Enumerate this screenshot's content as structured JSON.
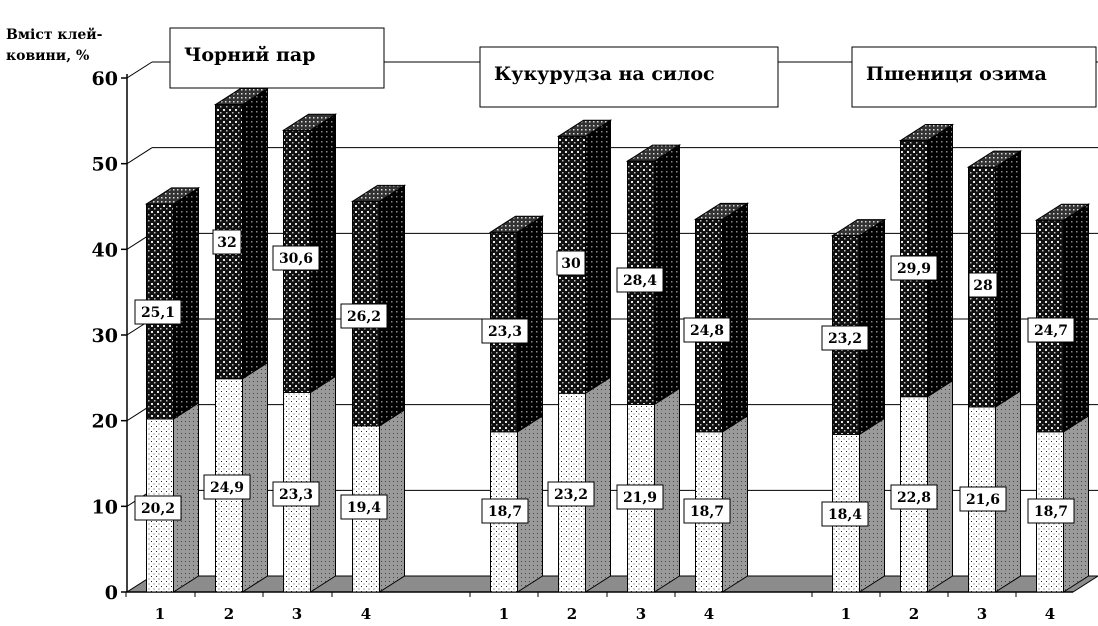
{
  "chart_data": {
    "type": "bar",
    "stacked": true,
    "three_d": true,
    "ylabel_lines": [
      "Вміст клей-",
      "ковини, %"
    ],
    "ylim": [
      0,
      60
    ],
    "yticks": [
      0,
      10,
      20,
      30,
      40,
      50,
      60
    ],
    "grid": true,
    "groups": [
      {
        "title": "Чорний пар",
        "categories": [
          "1",
          "2",
          "3",
          "4"
        ],
        "series": [
          {
            "values": [
              20.2,
              24.9,
              23.3,
              19.4
            ],
            "labels": [
              "20,2",
              "24,9",
              "23,3",
              "19,4"
            ],
            "pattern": "light-dotted"
          },
          {
            "values": [
              25.1,
              32,
              30.6,
              26.2
            ],
            "labels": [
              "25,1",
              "32",
              "30,6",
              "26,2"
            ],
            "pattern": "dark-checkered"
          }
        ]
      },
      {
        "title": "Кукурудза на силос",
        "categories": [
          "1",
          "2",
          "3",
          "4"
        ],
        "series": [
          {
            "values": [
              18.7,
              23.2,
              21.9,
              18.7
            ],
            "labels": [
              "18,7",
              "23,2",
              "21,9",
              "18,7"
            ],
            "pattern": "light-dotted"
          },
          {
            "values": [
              23.3,
              30,
              28.4,
              24.8
            ],
            "labels": [
              "23,3",
              "30",
              "28,4",
              "24,8"
            ],
            "pattern": "dark-checkered"
          }
        ]
      },
      {
        "title": "Пшениця озима",
        "categories": [
          "1",
          "2",
          "3",
          "4"
        ],
        "series": [
          {
            "values": [
              18.4,
              22.8,
              21.6,
              18.7
            ],
            "labels": [
              "18,4",
              "22,8",
              "21,6",
              "18,7"
            ],
            "pattern": "light-dotted"
          },
          {
            "values": [
              23.2,
              29.9,
              28,
              24.7
            ],
            "labels": [
              "23,2",
              "29,9",
              "28",
              "24,7"
            ],
            "pattern": "dark-checkered"
          }
        ]
      }
    ]
  }
}
